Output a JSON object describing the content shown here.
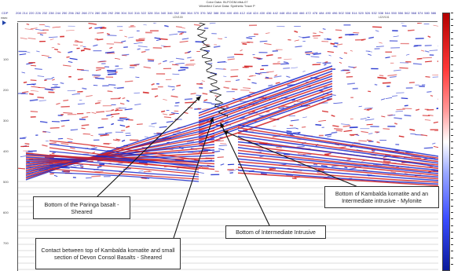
{
  "header": {
    "line1": "Color Data: IN-FOGM-bfsk-07",
    "line2": "Wiverlled Curve Data:  Synthetic Trace P"
  },
  "axis": {
    "ms_label": "msec",
    "cdp_label": "CDP",
    "cdp_ticks": [
      "208",
      "214",
      "220",
      "226",
      "232",
      "238",
      "244",
      "250",
      "256",
      "262",
      "268",
      "274",
      "280",
      "286",
      "292",
      "298",
      "304",
      "310",
      "316",
      "322",
      "328",
      "334",
      "340",
      "346",
      "352",
      "358",
      "364",
      "370",
      "376",
      "382",
      "388",
      "394",
      "400",
      "406",
      "412",
      "418",
      "424",
      "430",
      "436",
      "442",
      "448",
      "454",
      "460",
      "466",
      "472",
      "478",
      "484",
      "490",
      "496",
      "502",
      "508",
      "514",
      "520",
      "526",
      "532",
      "538",
      "544",
      "550",
      "556",
      "562",
      "568",
      "574",
      "580",
      "586"
    ],
    "time_ticks": [
      "100",
      "200",
      "300",
      "400",
      "500",
      "600",
      "700",
      "800"
    ],
    "ruler_left": "LDV100",
    "ruler_right": "LD/V101"
  },
  "annotations": {
    "paringa": "Bottom of the Paringa basalt - Sheared",
    "contact": "Contact between top of Kambalda komatite and small section of Devon Consol Basalts - Sheared",
    "intermediate": "Bottom of Intermediate Intrusive",
    "kambalda": "Bottom of Kambalda komatite and an Intermediate intrusive - Mylonite"
  },
  "colors": {
    "positive": "#d42020",
    "negative": "#1a2acc",
    "well_log": "#111111"
  }
}
